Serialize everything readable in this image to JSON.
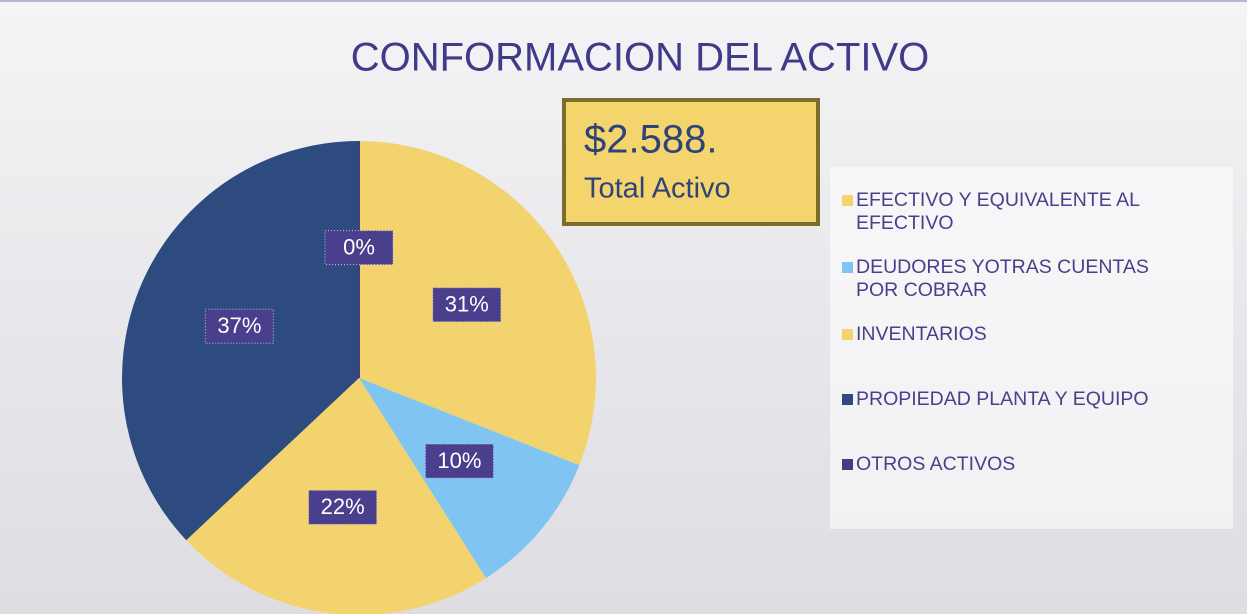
{
  "chart_data": {
    "type": "pie",
    "title": "CONFORMACION DEL ACTIVO",
    "annotations": [
      "$2.588.",
      "Total Activo"
    ],
    "categories": [
      "EFECTIVO Y EQUIVALENTE AL EFECTIVO",
      "DEUDORES YOTRAS CUENTAS POR COBRAR",
      "INVENTARIOS",
      "PROPIEDAD PLANTA Y EQUIPO",
      "OTROS ACTIVOS"
    ],
    "values": [
      31,
      10,
      22,
      37,
      0
    ],
    "value_labels": [
      "31%",
      "10%",
      "22%",
      "37%",
      "0%"
    ],
    "colors": [
      "#f2d36e",
      "#80c5f2",
      "#f2d36e",
      "#2e4b80",
      "#433c7e"
    ],
    "legend": "right"
  }
}
